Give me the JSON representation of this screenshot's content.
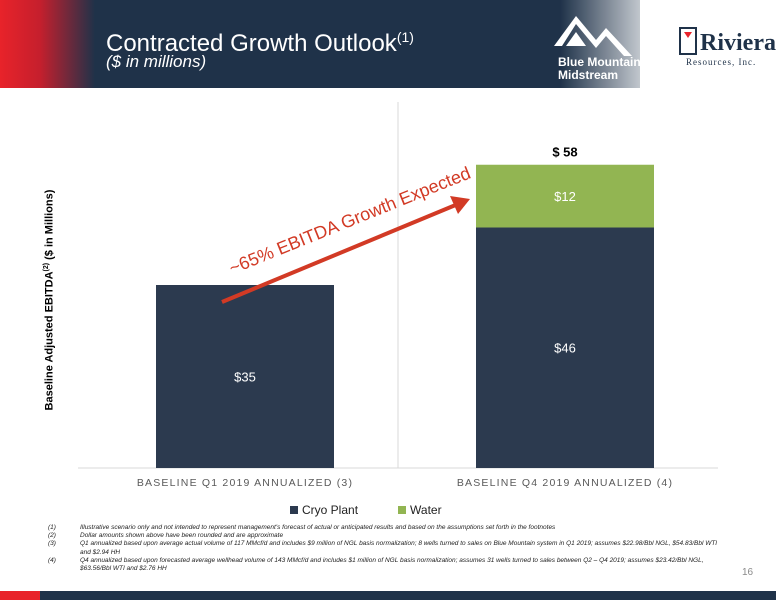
{
  "header": {
    "title": "Contracted Growth Outlook",
    "title_sup": "(1)",
    "subtitle": "($ in millions)",
    "logo_bm_line1": "Blue Mountain",
    "logo_bm_line2": "Midstream",
    "logo_riviera_name": "Riviera",
    "logo_riviera_sub": "Resources, Inc."
  },
  "colors": {
    "navy": "#2c3a4f",
    "green": "#92b552",
    "arrow": "#d23a25",
    "banner": "#1f3249"
  },
  "chart_data": {
    "type": "bar",
    "stacked": true,
    "categories": [
      "BASELINE Q1 2019 ANNUALIZED (3)",
      "BASELINE Q4 2019 ANNUALIZED (4)"
    ],
    "series": [
      {
        "name": "Cryo Plant",
        "values": [
          35,
          46
        ],
        "labels": [
          "$35",
          "$46"
        ],
        "color": "#2c3a4f"
      },
      {
        "name": "Water",
        "values": [
          0,
          12
        ],
        "labels": [
          "",
          "$12"
        ],
        "color": "#92b552"
      }
    ],
    "totals": [
      "",
      "$ 58"
    ],
    "ylabel": "Baseline Adjusted EBITDA",
    "ylabel_sup": "(2)",
    "ylabel_unit": "($ in Millions)",
    "ylim": [
      0,
      70
    ],
    "annotation": "~65% EBITDA Growth Expected",
    "legend_position": "bottom",
    "grid": false
  },
  "footnotes": [
    {
      "num": "(1)",
      "text": "Illustrative scenario only and not intended to represent management's forecast of actual or anticipated results and based on the assumptions set forth in the footnotes"
    },
    {
      "num": "(2)",
      "text": "Dollar amounts shown above have been rounded and are approximate"
    },
    {
      "num": "(3)",
      "text": "Q1 annualized based upon average actual volume of 117 MMcf/d and includes $9 million of NGL basis normalization; 8 wells turned to sales on Blue Mountain system in Q1 2019; assumes $22.98/Bbl NGL, $54.83/Bbl WTI and $2.94 HH"
    },
    {
      "num": "(4)",
      "text": "Q4 annualized based upon forecasted average wellhead volume of 143 MMcf/d and includes $1 million of NGL basis normalization; assumes 31 wells turned to sales between Q2 – Q4 2019; assumes $23.42/Bbl NGL, $63.56/Bbl WTI and $2.76 HH"
    }
  ],
  "page_number": "16"
}
